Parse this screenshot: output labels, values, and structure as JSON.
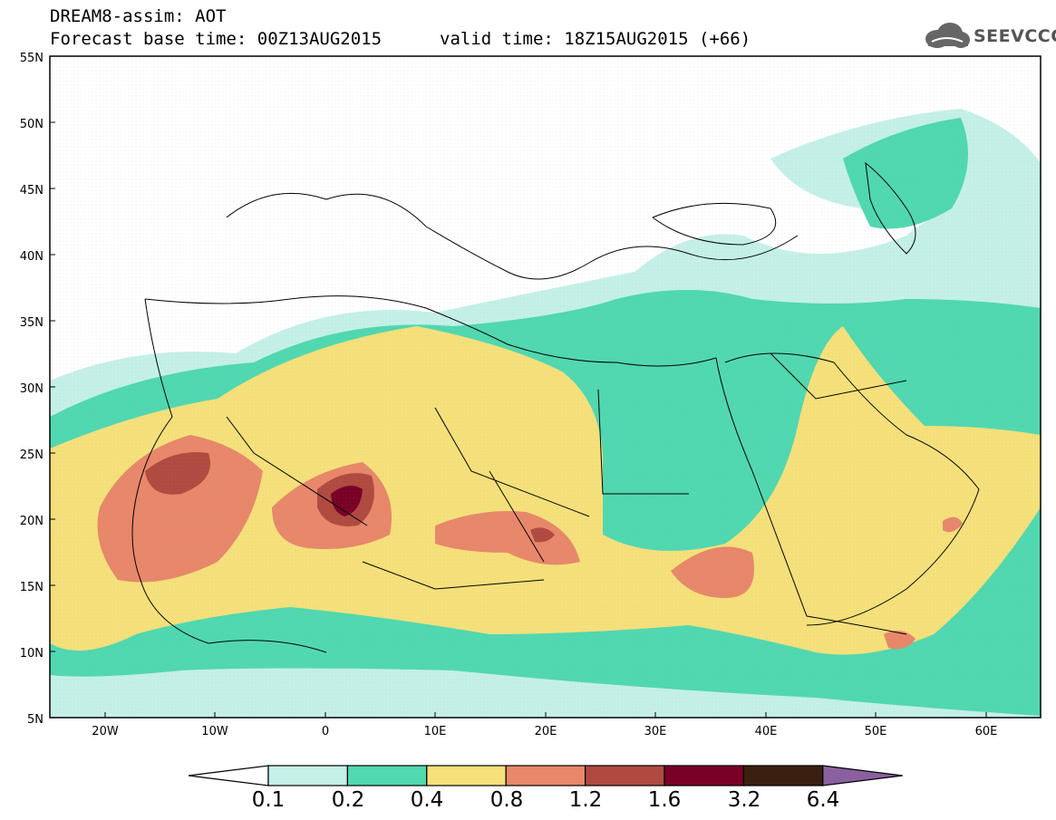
{
  "header": {
    "line1": "DREAM8-assim: AOT",
    "base_time": "Forecast base time: 00Z13AUG2015",
    "valid_time": "valid time: 18Z15AUG2015 (+66)"
  },
  "logo": {
    "text": "SEEVCCC",
    "icon": "cloud-icon"
  },
  "axes": {
    "lat_labels": [
      "55N",
      "50N",
      "45N",
      "40N",
      "35N",
      "30N",
      "25N",
      "20N",
      "15N",
      "10N",
      "5N"
    ],
    "lon_labels": [
      "20W",
      "10W",
      "0",
      "10E",
      "20E",
      "30E",
      "40E",
      "50E",
      "60E"
    ]
  },
  "legend": {
    "labels": [
      "0.1",
      "0.2",
      "0.4",
      "0.8",
      "1.2",
      "1.6",
      "3.2",
      "6.4"
    ],
    "colors": [
      "#ffffff",
      "#c4f0e8",
      "#50d8b0",
      "#f5e07a",
      "#e8876a",
      "#b04a40",
      "#7a0028",
      "#3a2010",
      "#8a60a0"
    ]
  }
}
